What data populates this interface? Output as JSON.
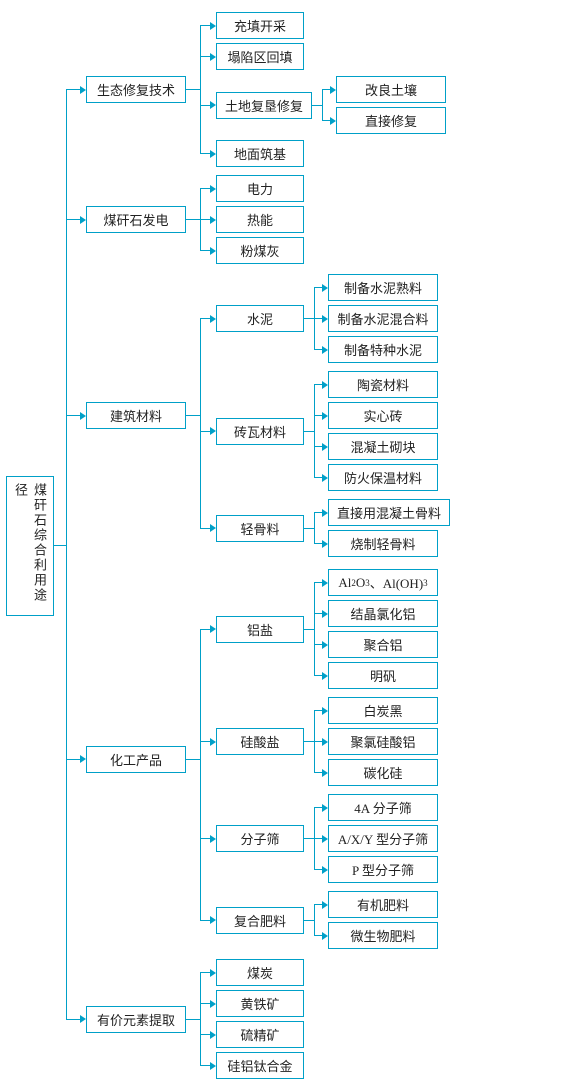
{
  "type": "tree",
  "colors": {
    "border": "#00a0c8",
    "text": "#222222",
    "background": "#ffffff",
    "arrow": "#00a0c8"
  },
  "fontsize": 13,
  "root_label": "煤矸石综合利用途径",
  "hline_lengths": {
    "root_to_l1_bar": 12,
    "l1_to_node": 14,
    "l1_to_l2_bar": 14,
    "l2_to_node": 10,
    "l2_to_l3_bar": 10,
    "l3_to_node": 8
  },
  "tree": [
    {
      "label": "生态修复技术",
      "children": [
        {
          "label": "充填开采"
        },
        {
          "label": "塌陷区回填"
        },
        {
          "label": "土地复垦修复",
          "children": [
            {
              "label": "改良土壤"
            },
            {
              "label": "直接修复"
            }
          ]
        },
        {
          "label": "地面筑基"
        }
      ]
    },
    {
      "label": "煤矸石发电",
      "children": [
        {
          "label": "电力"
        },
        {
          "label": "热能"
        },
        {
          "label": "粉煤灰"
        }
      ]
    },
    {
      "label": "建筑材料",
      "children": [
        {
          "label": "水泥",
          "children": [
            {
              "label": "制备水泥熟料"
            },
            {
              "label": "制备水泥混合料"
            },
            {
              "label": "制备特种水泥"
            }
          ]
        },
        {
          "label": "砖瓦材料",
          "children": [
            {
              "label": "陶瓷材料"
            },
            {
              "label": "实心砖"
            },
            {
              "label": "混凝土砌块"
            },
            {
              "label": "防火保温材料"
            }
          ]
        },
        {
          "label": "轻骨料",
          "children": [
            {
              "label": "直接用混凝土骨料"
            },
            {
              "label": "烧制轻骨料"
            }
          ]
        }
      ]
    },
    {
      "label": "化工产品",
      "children": [
        {
          "label": "铝盐",
          "children": [
            {
              "label": "Al₂O₃、Al(OH)₃",
              "html": true
            },
            {
              "label": "结晶氯化铝"
            },
            {
              "label": "聚合铝"
            },
            {
              "label": "明矾"
            }
          ]
        },
        {
          "label": "硅酸盐",
          "children": [
            {
              "label": "白炭黑"
            },
            {
              "label": "聚氯硅酸铝"
            },
            {
              "label": "碳化硅"
            }
          ]
        },
        {
          "label": "分子筛",
          "children": [
            {
              "label": "4A 分子筛"
            },
            {
              "label": "A/X/Y 型分子筛"
            },
            {
              "label": "P 型分子筛"
            }
          ]
        },
        {
          "label": "复合肥料",
          "children": [
            {
              "label": "有机肥料"
            },
            {
              "label": "微生物肥料"
            }
          ]
        }
      ]
    },
    {
      "label": "有价元素提取",
      "children": [
        {
          "label": "煤炭"
        },
        {
          "label": "黄铁矿"
        },
        {
          "label": "硫精矿"
        },
        {
          "label": "硅铝钛合金"
        }
      ]
    }
  ]
}
